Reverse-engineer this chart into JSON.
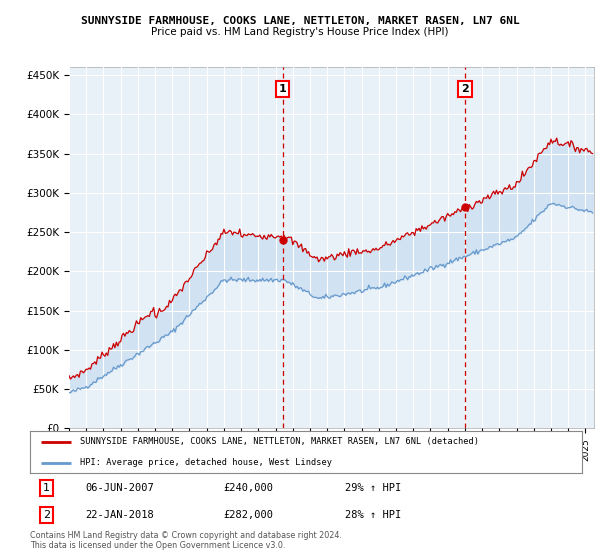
{
  "title1": "SUNNYSIDE FARMHOUSE, COOKS LANE, NETTLETON, MARKET RASEN, LN7 6NL",
  "title2": "Price paid vs. HM Land Registry's House Price Index (HPI)",
  "ylabel_ticks": [
    "£0",
    "£50K",
    "£100K",
    "£150K",
    "£200K",
    "£250K",
    "£300K",
    "£350K",
    "£400K",
    "£450K"
  ],
  "ytick_values": [
    0,
    50000,
    100000,
    150000,
    200000,
    250000,
    300000,
    350000,
    400000,
    450000
  ],
  "ylim": [
    0,
    460000
  ],
  "sale1_date": "06-JUN-2007",
  "sale1_price": 240000,
  "sale1_hpi": "29%",
  "sale2_date": "22-JAN-2018",
  "sale2_price": 282000,
  "sale2_hpi": "28%",
  "legend_property": "SUNNYSIDE FARMHOUSE, COOKS LANE, NETTLETON, MARKET RASEN, LN7 6NL (detached)",
  "legend_hpi": "HPI: Average price, detached house, West Lindsey",
  "footnote1": "Contains HM Land Registry data © Crown copyright and database right 2024.",
  "footnote2": "This data is licensed under the Open Government Licence v3.0.",
  "property_color": "#cc0000",
  "hpi_color": "#6699cc",
  "fill_color": "#c8ddf0",
  "bg_color": "#e8f0f8",
  "sale_line_color": "#cc0000",
  "xstart_year": 1995,
  "xend_year": 2025
}
